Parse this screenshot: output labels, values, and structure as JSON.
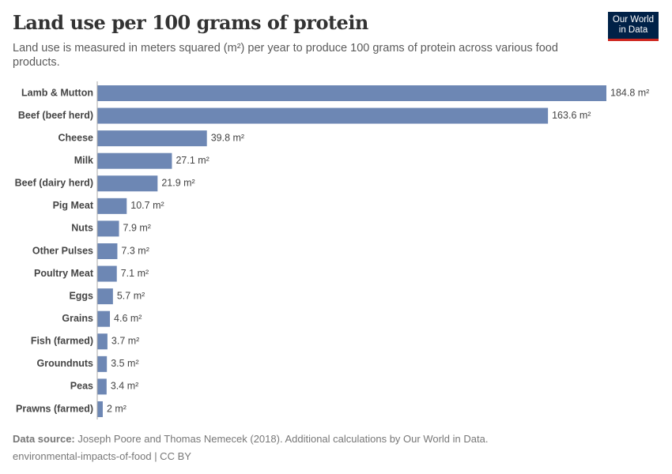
{
  "chart_data": {
    "type": "bar",
    "orientation": "horizontal",
    "title": "Land use per 100 grams of protein",
    "subtitle": "Land use is measured in meters squared (m²) per year to produce 100 grams of protein across various food products.",
    "categories": [
      "Lamb & Mutton",
      "Beef (beef herd)",
      "Cheese",
      "Milk",
      "Beef (dairy herd)",
      "Pig Meat",
      "Nuts",
      "Other Pulses",
      "Poultry Meat",
      "Eggs",
      "Grains",
      "Fish (farmed)",
      "Groundnuts",
      "Peas",
      "Prawns (farmed)"
    ],
    "values": [
      184.8,
      163.6,
      39.8,
      27.1,
      21.9,
      10.7,
      7.9,
      7.3,
      7.1,
      5.7,
      4.6,
      3.7,
      3.5,
      3.4,
      2
    ],
    "value_labels": [
      "184.8 m²",
      "163.6 m²",
      "39.8 m²",
      "27.1 m²",
      "21.9 m²",
      "10.7 m²",
      "7.9 m²",
      "7.3 m²",
      "7.1 m²",
      "5.7 m²",
      "4.6 m²",
      "3.7 m²",
      "3.5 m²",
      "3.4 m²",
      "2 m²"
    ],
    "color": "#6d87b4",
    "source_label": "Data source:",
    "source": "Joseph Poore and Thomas Nemecek (2018). Additional calculations by Our World in Data.",
    "footer": "environmental-impacts-of-food | CC BY",
    "logo": [
      "Our World",
      "in Data"
    ]
  }
}
